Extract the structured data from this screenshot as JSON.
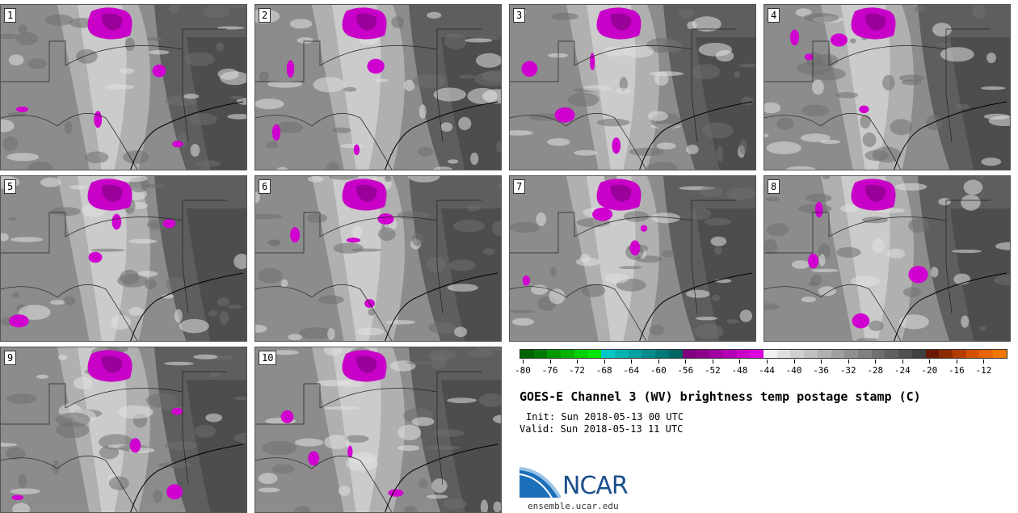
{
  "figure": {
    "title": "GOES-E Channel 3 (WV) brightness temp postage stamp (C)",
    "init": "Init: Sun 2018-05-13 00 UTC",
    "valid": "Valid: Sun 2018-05-13 11 UTC",
    "site": "ensemble.ucar.edu",
    "logo_text": "NCAR"
  },
  "members": [
    {
      "label": "1"
    },
    {
      "label": "2"
    },
    {
      "label": "3"
    },
    {
      "label": "4"
    },
    {
      "label": "5"
    },
    {
      "label": "6"
    },
    {
      "label": "7"
    },
    {
      "label": "8"
    },
    {
      "label": "9"
    },
    {
      "label": "10"
    }
  ],
  "colorbar": {
    "ticks": [
      "-80",
      "-76",
      "-72",
      "-68",
      "-64",
      "-60",
      "-56",
      "-52",
      "-48",
      "-44",
      "-40",
      "-36",
      "-32",
      "-28",
      "-24",
      "-20",
      "-16",
      "-12"
    ],
    "colors": [
      "#006400",
      "#007a00",
      "#009a00",
      "#00b400",
      "#00d000",
      "#00e600",
      "#00c8c8",
      "#00b4b4",
      "#00a0a0",
      "#008c8c",
      "#007878",
      "#006464",
      "#800080",
      "#8c008c",
      "#a000a0",
      "#b400b4",
      "#c800c8",
      "#dc00dc",
      "#f0f0f0",
      "#e0e0e0",
      "#d0d0d0",
      "#c0c0c0",
      "#b0b0b0",
      "#a0a0a0",
      "#909090",
      "#808080",
      "#707070",
      "#606060",
      "#505050",
      "#404040",
      "#6a1a00",
      "#8c2a00",
      "#b43c00",
      "#d25000",
      "#e66400",
      "#f07800"
    ]
  },
  "colors": {
    "background": "#ffffff",
    "moist": "#c800c8",
    "border": "#333333"
  }
}
